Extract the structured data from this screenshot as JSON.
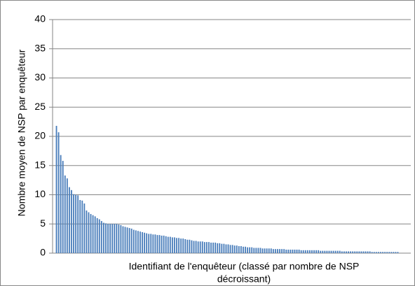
{
  "chart_data": {
    "type": "bar",
    "y_label": "Nombre moyen de NSP par enquêteur",
    "x_label": [
      "Identifiant de l'enquêteur (classé par nombre de NSP",
      "décroissant)"
    ],
    "color": "#4a7ebb",
    "values": [
      21.8,
      20.7,
      16.8,
      15.8,
      13.3,
      12.8,
      11.3,
      10.8,
      10.1,
      10,
      9.9,
      9.1,
      9,
      8.5,
      7.3,
      7,
      6.7,
      6.5,
      6.3,
      6,
      5.8,
      5.5,
      5.2,
      5.1,
      5,
      5,
      5,
      5,
      5,
      4.9,
      4.8,
      4.6,
      4.5,
      4.4,
      4.3,
      4.2,
      4,
      3.9,
      3.8,
      3.7,
      3.6,
      3.5,
      3.4,
      3.3,
      3.3,
      3.2,
      3.2,
      3.1,
      3.1,
      3,
      3,
      2.9,
      2.8,
      2.8,
      2.7,
      2.7,
      2.6,
      2.6,
      2.5,
      2.5,
      2.4,
      2.3,
      2.3,
      2.2,
      2.1,
      2.1,
      2,
      2,
      2,
      1.9,
      1.9,
      1.9,
      1.8,
      1.8,
      1.8,
      1.7,
      1.7,
      1.6,
      1.6,
      1.5,
      1.5,
      1.4,
      1.4,
      1.3,
      1.3,
      1.2,
      1.2,
      1.1,
      1.1,
      1,
      1,
      1,
      0.9,
      0.9,
      0.9,
      0.9,
      0.8,
      0.8,
      0.8,
      0.8,
      0.8,
      0.7,
      0.7,
      0.7,
      0.7,
      0.7,
      0.7,
      0.6,
      0.6,
      0.6,
      0.6,
      0.6,
      0.6,
      0.6,
      0.5,
      0.5,
      0.5,
      0.5,
      0.5,
      0.5,
      0.5,
      0.5,
      0.5,
      0.4,
      0.4,
      0.4,
      0.4,
      0.4,
      0.4,
      0.4,
      0.4,
      0.4,
      0.4,
      0.3,
      0.3,
      0.3,
      0.3,
      0.3,
      0.3,
      0.3,
      0.3,
      0.3,
      0.3,
      0.3,
      0.3,
      0.3,
      0.3,
      0.2,
      0.2,
      0.2,
      0.2,
      0.2,
      0.2,
      0.2,
      0.2,
      0.2,
      0.2,
      0.2,
      0.2,
      0.2
    ],
    "ylim": [
      0,
      40
    ],
    "yticks": [
      0,
      5,
      10,
      15,
      20,
      25,
      30,
      35,
      40
    ],
    "grid": true
  }
}
